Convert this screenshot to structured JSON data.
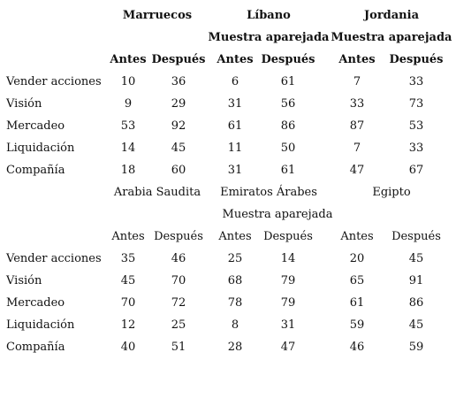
{
  "table1": {
    "countries": [
      "Marruecos",
      "Líbano",
      "Jordania"
    ],
    "subheader": [
      "",
      "Muestra aparejada",
      "Muestra aparejada"
    ],
    "columns": [
      "Antes",
      "Después",
      "Antes",
      "Después",
      "Antes",
      "Después"
    ],
    "rows": [
      {
        "label": "Vender acciones",
        "values": [
          "10",
          "36",
          "6",
          "61",
          "7",
          "33"
        ]
      },
      {
        "label": "Visión",
        "values": [
          "9",
          "29",
          "31",
          "56",
          "33",
          "73"
        ]
      },
      {
        "label": "Mercadeo",
        "values": [
          "53",
          "92",
          "61",
          "86",
          "87",
          "53"
        ]
      },
      {
        "label": "Liquidación",
        "values": [
          "14",
          "45",
          "11",
          "50",
          "7",
          "33"
        ]
      },
      {
        "label": "Compañía",
        "values": [
          "18",
          "60",
          "31",
          "61",
          "47",
          "67"
        ]
      }
    ]
  },
  "table2": {
    "countries": [
      "Arabia Saudita",
      "Emiratos Árabes",
      "Egipto"
    ],
    "subheader": "Muestra aparejada",
    "columns": [
      "Antes",
      "Después",
      "Antes",
      "Después",
      "Antes",
      "Después"
    ],
    "rows": [
      {
        "label": "Vender acciones",
        "values": [
          "35",
          "46",
          "25",
          "14",
          "20",
          "45"
        ]
      },
      {
        "label": "Visión",
        "values": [
          "45",
          "70",
          "68",
          "79",
          "65",
          "91"
        ]
      },
      {
        "label": "Mercadeo",
        "values": [
          "70",
          "72",
          "78",
          "79",
          "61",
          "86"
        ]
      },
      {
        "label": "Liquidación",
        "values": [
          "12",
          "25",
          "8",
          "31",
          "59",
          "45"
        ]
      },
      {
        "label": "Compañía",
        "values": [
          "40",
          "51",
          "28",
          "47",
          "46",
          "59"
        ]
      }
    ]
  }
}
